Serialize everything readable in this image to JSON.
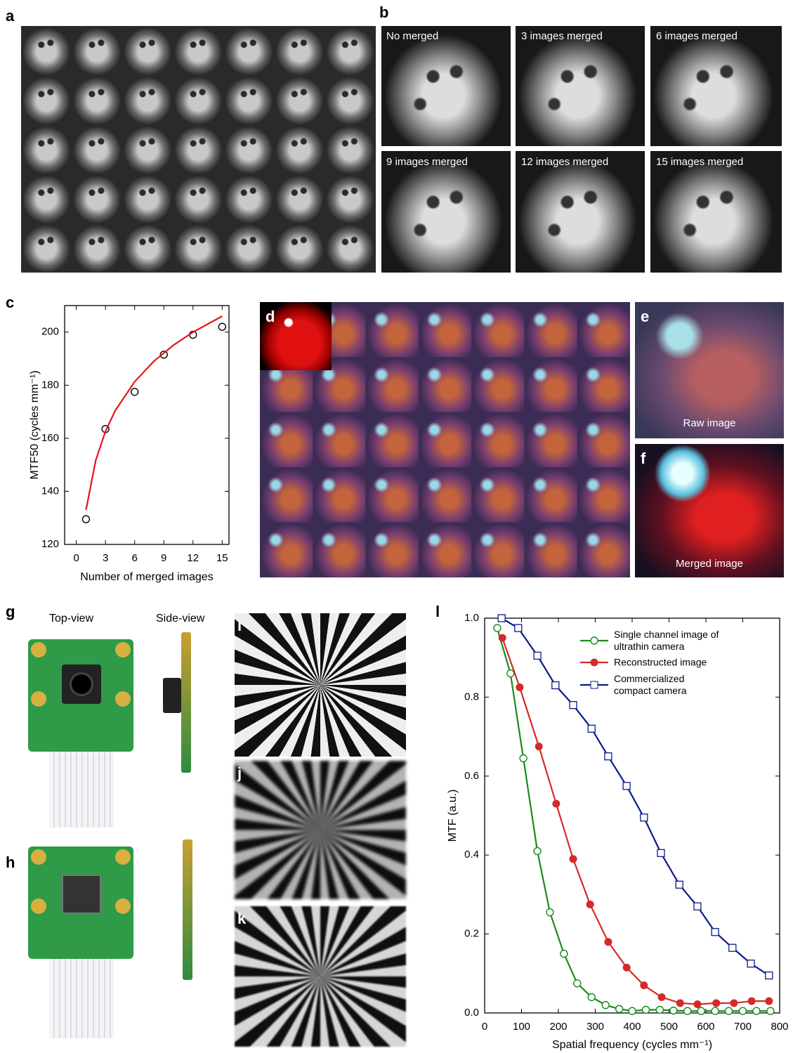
{
  "panel_labels": [
    "a",
    "b",
    "c",
    "d",
    "e",
    "f",
    "g",
    "h",
    "i",
    "j",
    "k",
    "l"
  ],
  "b_captions": [
    "No merged",
    "3 images merged",
    "6 images merged",
    "9 images merged",
    "12 images merged",
    "15 images merged"
  ],
  "e_caption": "Raw image",
  "f_caption": "Merged image",
  "g_captions": [
    "Top-view",
    "Side-view"
  ],
  "chart_data": [
    {
      "type": "scatter",
      "xlabel": "Number of merged images",
      "ylabel": "MTF50 (cycles mm⁻¹)",
      "xlim": [
        -1.2,
        15.7
      ],
      "ylim": [
        120,
        210
      ],
      "xticks": [
        0,
        3,
        6,
        9,
        12,
        15
      ],
      "yticks": [
        120,
        140,
        160,
        180,
        200
      ],
      "series": [
        {
          "type": "scatter",
          "marker": "open-circle",
          "color": "#000000",
          "x": [
            1,
            3,
            6,
            9,
            12,
            15
          ],
          "values": [
            129.5,
            163.5,
            177.5,
            191.5,
            199,
            202
          ]
        },
        {
          "type": "line",
          "color": "#e8141a",
          "x": [
            1,
            2,
            3,
            4,
            6,
            8,
            10,
            12,
            15
          ],
          "values": [
            133,
            151.7,
            162.6,
            170.4,
            181.3,
            189.1,
            195.1,
            200,
            206
          ]
        }
      ]
    },
    {
      "type": "line",
      "xlabel": "Spatial frequency (cycles mm⁻¹)",
      "ylabel": "MTF (a.u.)",
      "xlim": [
        0,
        800
      ],
      "ylim": [
        0,
        1
      ],
      "xticks": [
        0,
        100,
        200,
        300,
        400,
        500,
        600,
        700,
        800
      ],
      "yticks": [
        {
          "value": 0,
          "label": "0.0"
        },
        0.2,
        0.4,
        0.6,
        0.8,
        {
          "value": 1,
          "label": "1.0"
        }
      ],
      "legend": "upper right",
      "series": [
        {
          "name": "Single channel image of ultrathin camera",
          "color": "#1a8a1a",
          "marker": "open-circle",
          "x": [
            34,
            70,
            105,
            143,
            177,
            215,
            251,
            290,
            328,
            365,
            400,
            437,
            475,
            512,
            550,
            587,
            625,
            662,
            700,
            737,
            775
          ],
          "values": [
            0.975,
            0.86,
            0.645,
            0.41,
            0.255,
            0.15,
            0.075,
            0.04,
            0.02,
            0.01,
            0.005,
            0.008,
            0.008,
            0.006,
            0.005,
            0.005,
            0.005,
            0.005,
            0.005,
            0.005,
            0.005
          ]
        },
        {
          "name": "Reconstructed image",
          "color": "#d42a2a",
          "marker": "filled-circle",
          "x": [
            48,
            95,
            147,
            194,
            240,
            286,
            335,
            385,
            432,
            480,
            530,
            577,
            628,
            676,
            724,
            771
          ],
          "values": [
            0.95,
            0.825,
            0.675,
            0.53,
            0.39,
            0.275,
            0.18,
            0.115,
            0.07,
            0.04,
            0.025,
            0.022,
            0.025,
            0.025,
            0.03,
            0.03
          ]
        },
        {
          "name": "Commercialized compact camera",
          "color": "#0a1a8c",
          "marker": "open-square",
          "x": [
            46,
            91,
            143,
            192,
            240,
            290,
            335,
            385,
            432,
            478,
            528,
            577,
            625,
            672,
            722,
            771
          ],
          "values": [
            1,
            0.975,
            0.905,
            0.83,
            0.78,
            0.72,
            0.65,
            0.575,
            0.495,
            0.405,
            0.325,
            0.27,
            0.205,
            0.165,
            0.125,
            0.095
          ]
        }
      ]
    }
  ]
}
